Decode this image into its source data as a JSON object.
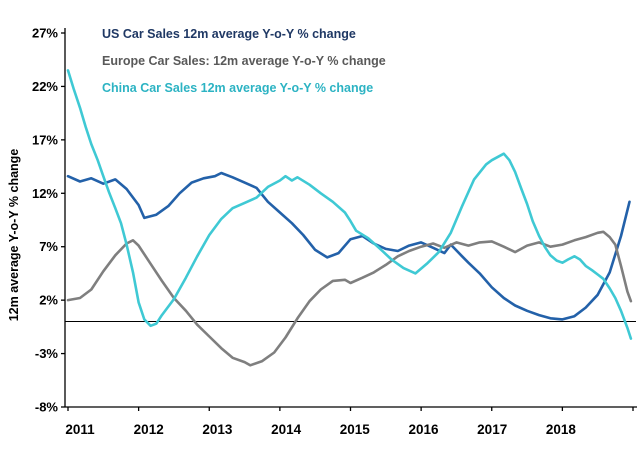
{
  "chart_data": {
    "type": "line",
    "title": "",
    "xlabel": "",
    "ylabel": "12m average Y-o-Y % change",
    "xlim": [
      2011,
      2019
    ],
    "ylim": [
      -8,
      27
    ],
    "grid": false,
    "zero_line": 0,
    "legend_position": "top-left-inside",
    "y_ticks": [
      {
        "value": 27,
        "label": "27%"
      },
      {
        "value": 22,
        "label": "22%"
      },
      {
        "value": 17,
        "label": "17%"
      },
      {
        "value": 12,
        "label": "12%"
      },
      {
        "value": 7,
        "label": "7%"
      },
      {
        "value": 2,
        "label": "2%"
      },
      {
        "value": -3,
        "label": "-3%"
      },
      {
        "value": -8,
        "label": "-8%"
      }
    ],
    "x_ticks": [
      {
        "value": 2011,
        "label": "2011"
      },
      {
        "value": 2012,
        "label": "2012"
      },
      {
        "value": 2013,
        "label": "2013"
      },
      {
        "value": 2014,
        "label": "2014"
      },
      {
        "value": 2015,
        "label": "2015"
      },
      {
        "value": 2016,
        "label": "2016"
      },
      {
        "value": 2017,
        "label": "2017"
      },
      {
        "value": 2018,
        "label": "2018"
      }
    ],
    "series": [
      {
        "name": "us",
        "label": "US Car Sales 12m average Y-o-Y % change",
        "color": "#1F3864",
        "line_color": "#2361A9",
        "points": [
          [
            2011.0,
            13.6
          ],
          [
            2011.17,
            13.1
          ],
          [
            2011.33,
            13.4
          ],
          [
            2011.5,
            12.9
          ],
          [
            2011.67,
            13.3
          ],
          [
            2011.83,
            12.4
          ],
          [
            2012.0,
            10.9
          ],
          [
            2012.08,
            9.7
          ],
          [
            2012.25,
            10.0
          ],
          [
            2012.42,
            10.8
          ],
          [
            2012.58,
            12.0
          ],
          [
            2012.75,
            13.0
          ],
          [
            2012.92,
            13.4
          ],
          [
            2013.08,
            13.6
          ],
          [
            2013.17,
            13.9
          ],
          [
            2013.33,
            13.5
          ],
          [
            2013.5,
            13.0
          ],
          [
            2013.67,
            12.5
          ],
          [
            2013.83,
            11.2
          ],
          [
            2014.0,
            10.2
          ],
          [
            2014.17,
            9.2
          ],
          [
            2014.33,
            8.1
          ],
          [
            2014.5,
            6.7
          ],
          [
            2014.67,
            6.0
          ],
          [
            2014.83,
            6.4
          ],
          [
            2015.0,
            7.7
          ],
          [
            2015.17,
            8.0
          ],
          [
            2015.33,
            7.3
          ],
          [
            2015.5,
            6.8
          ],
          [
            2015.67,
            6.6
          ],
          [
            2015.83,
            7.1
          ],
          [
            2016.0,
            7.4
          ],
          [
            2016.17,
            6.9
          ],
          [
            2016.33,
            6.4
          ],
          [
            2016.42,
            7.2
          ],
          [
            2016.58,
            6.1
          ],
          [
            2016.67,
            5.5
          ],
          [
            2016.83,
            4.5
          ],
          [
            2017.0,
            3.2
          ],
          [
            2017.17,
            2.2
          ],
          [
            2017.33,
            1.5
          ],
          [
            2017.5,
            1.0
          ],
          [
            2017.67,
            0.6
          ],
          [
            2017.83,
            0.3
          ],
          [
            2018.0,
            0.2
          ],
          [
            2018.17,
            0.5
          ],
          [
            2018.33,
            1.3
          ],
          [
            2018.5,
            2.5
          ],
          [
            2018.67,
            4.6
          ],
          [
            2018.83,
            8.0
          ],
          [
            2018.95,
            11.2
          ]
        ]
      },
      {
        "name": "europe",
        "label": "Europe Car Sales: 12m average Y-o-Y % change",
        "color": "#595959",
        "line_color": "#7F7F7F",
        "points": [
          [
            2011.0,
            2.0
          ],
          [
            2011.17,
            2.2
          ],
          [
            2011.33,
            3.0
          ],
          [
            2011.5,
            4.7
          ],
          [
            2011.67,
            6.2
          ],
          [
            2011.83,
            7.3
          ],
          [
            2011.92,
            7.6
          ],
          [
            2012.0,
            7.1
          ],
          [
            2012.17,
            5.4
          ],
          [
            2012.33,
            3.8
          ],
          [
            2012.5,
            2.2
          ],
          [
            2012.67,
            1.0
          ],
          [
            2012.83,
            -0.3
          ],
          [
            2013.0,
            -1.4
          ],
          [
            2013.17,
            -2.5
          ],
          [
            2013.33,
            -3.4
          ],
          [
            2013.5,
            -3.8
          ],
          [
            2013.58,
            -4.1
          ],
          [
            2013.75,
            -3.7
          ],
          [
            2013.92,
            -2.9
          ],
          [
            2014.08,
            -1.5
          ],
          [
            2014.25,
            0.3
          ],
          [
            2014.42,
            1.9
          ],
          [
            2014.58,
            3.0
          ],
          [
            2014.75,
            3.8
          ],
          [
            2014.92,
            3.9
          ],
          [
            2015.0,
            3.6
          ],
          [
            2015.17,
            4.1
          ],
          [
            2015.33,
            4.6
          ],
          [
            2015.5,
            5.3
          ],
          [
            2015.67,
            6.1
          ],
          [
            2015.83,
            6.6
          ],
          [
            2016.0,
            7.0
          ],
          [
            2016.17,
            7.3
          ],
          [
            2016.33,
            6.9
          ],
          [
            2016.5,
            7.4
          ],
          [
            2016.67,
            7.1
          ],
          [
            2016.83,
            7.4
          ],
          [
            2017.0,
            7.5
          ],
          [
            2017.17,
            7.0
          ],
          [
            2017.33,
            6.5
          ],
          [
            2017.5,
            7.1
          ],
          [
            2017.67,
            7.4
          ],
          [
            2017.83,
            7.0
          ],
          [
            2018.0,
            7.2
          ],
          [
            2018.17,
            7.6
          ],
          [
            2018.33,
            7.9
          ],
          [
            2018.5,
            8.3
          ],
          [
            2018.58,
            8.4
          ],
          [
            2018.67,
            7.9
          ],
          [
            2018.75,
            7.2
          ],
          [
            2018.83,
            5.2
          ],
          [
            2018.92,
            2.8
          ],
          [
            2018.97,
            1.9
          ]
        ]
      },
      {
        "name": "china",
        "label": "China Car Sales 12m average Y-o-Y % change",
        "color": "#2CB3C3",
        "line_color": "#3FC9D4",
        "points": [
          [
            2011.0,
            23.5
          ],
          [
            2011.08,
            21.8
          ],
          [
            2011.17,
            20.0
          ],
          [
            2011.25,
            18.2
          ],
          [
            2011.33,
            16.6
          ],
          [
            2011.42,
            15.1
          ],
          [
            2011.5,
            13.6
          ],
          [
            2011.58,
            12.1
          ],
          [
            2011.67,
            10.6
          ],
          [
            2011.75,
            9.2
          ],
          [
            2011.83,
            7.2
          ],
          [
            2011.92,
            4.6
          ],
          [
            2012.0,
            1.8
          ],
          [
            2012.08,
            0.2
          ],
          [
            2012.17,
            -0.4
          ],
          [
            2012.25,
            -0.2
          ],
          [
            2012.33,
            0.6
          ],
          [
            2012.5,
            2.1
          ],
          [
            2012.67,
            4.1
          ],
          [
            2012.83,
            6.1
          ],
          [
            2013.0,
            8.1
          ],
          [
            2013.17,
            9.6
          ],
          [
            2013.33,
            10.6
          ],
          [
            2013.5,
            11.1
          ],
          [
            2013.67,
            11.6
          ],
          [
            2013.83,
            12.6
          ],
          [
            2014.0,
            13.2
          ],
          [
            2014.08,
            13.6
          ],
          [
            2014.17,
            13.2
          ],
          [
            2014.25,
            13.5
          ],
          [
            2014.42,
            12.8
          ],
          [
            2014.58,
            12.0
          ],
          [
            2014.75,
            11.2
          ],
          [
            2014.92,
            10.2
          ],
          [
            2015.0,
            9.4
          ],
          [
            2015.08,
            8.5
          ],
          [
            2015.25,
            7.8
          ],
          [
            2015.42,
            6.8
          ],
          [
            2015.58,
            5.8
          ],
          [
            2015.75,
            5.0
          ],
          [
            2015.92,
            4.5
          ],
          [
            2016.08,
            5.4
          ],
          [
            2016.25,
            6.5
          ],
          [
            2016.42,
            8.3
          ],
          [
            2016.58,
            10.8
          ],
          [
            2016.75,
            13.3
          ],
          [
            2016.92,
            14.7
          ],
          [
            2017.0,
            15.1
          ],
          [
            2017.17,
            15.7
          ],
          [
            2017.25,
            15.1
          ],
          [
            2017.33,
            14.0
          ],
          [
            2017.42,
            12.4
          ],
          [
            2017.5,
            11.0
          ],
          [
            2017.58,
            9.4
          ],
          [
            2017.67,
            8.0
          ],
          [
            2017.75,
            7.0
          ],
          [
            2017.83,
            6.2
          ],
          [
            2017.92,
            5.7
          ],
          [
            2018.0,
            5.5
          ],
          [
            2018.08,
            5.8
          ],
          [
            2018.17,
            6.1
          ],
          [
            2018.25,
            5.8
          ],
          [
            2018.33,
            5.2
          ],
          [
            2018.42,
            4.8
          ],
          [
            2018.5,
            4.4
          ],
          [
            2018.58,
            4.0
          ],
          [
            2018.67,
            3.1
          ],
          [
            2018.75,
            2.2
          ],
          [
            2018.83,
            1.0
          ],
          [
            2018.92,
            -0.6
          ],
          [
            2018.97,
            -1.6
          ]
        ]
      }
    ]
  }
}
